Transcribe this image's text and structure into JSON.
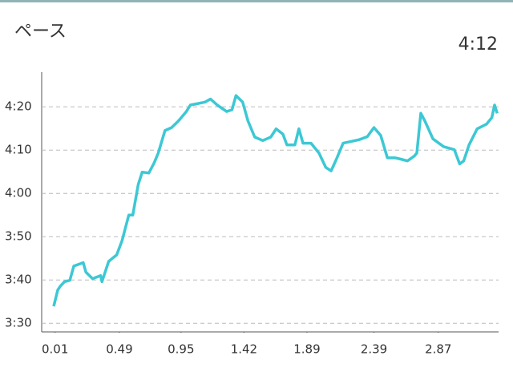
{
  "chart_data": {
    "type": "line",
    "title": "ペース",
    "current_pace": "4:12",
    "x": [
      0.0,
      0.03,
      0.05,
      0.08,
      0.12,
      0.15,
      0.22,
      0.24,
      0.29,
      0.35,
      0.36,
      0.41,
      0.47,
      0.51,
      0.56,
      0.59,
      0.63,
      0.66,
      0.71,
      0.75,
      0.78,
      0.83,
      0.88,
      0.93,
      0.99,
      1.02,
      1.07,
      1.13,
      1.17,
      1.22,
      1.29,
      1.33,
      1.36,
      1.41,
      1.45,
      1.5,
      1.56,
      1.62,
      1.66,
      1.71,
      1.74,
      1.8,
      1.83,
      1.86,
      1.92,
      1.98,
      2.03,
      2.07,
      2.11,
      2.16,
      2.22,
      2.28,
      2.34,
      2.39,
      2.44,
      2.49,
      2.55,
      2.59,
      2.64,
      2.69,
      2.71,
      2.74,
      2.77,
      2.83,
      2.91,
      2.99,
      3.03,
      3.06,
      3.1,
      3.16,
      3.23,
      3.27,
      3.29,
      3.31
    ],
    "values": [
      213.9,
      217.7,
      218.6,
      219.6,
      219.9,
      223.2,
      224.0,
      221.8,
      220.3,
      221.0,
      219.6,
      224.3,
      225.8,
      229.1,
      235.0,
      235.0,
      242.0,
      244.9,
      244.7,
      247.1,
      249.3,
      254.5,
      255.2,
      256.7,
      258.9,
      260.4,
      260.7,
      261.1,
      261.8,
      260.4,
      258.9,
      259.3,
      262.6,
      261.1,
      256.7,
      253.0,
      252.2,
      253.0,
      254.9,
      253.7,
      251.2,
      251.2,
      254.9,
      251.6,
      251.6,
      249.3,
      246.0,
      245.2,
      247.9,
      251.6,
      252.0,
      252.4,
      253.1,
      255.2,
      253.4,
      248.2,
      248.2,
      247.9,
      247.5,
      248.6,
      249.3,
      258.5,
      256.7,
      252.6,
      250.8,
      250.1,
      246.8,
      247.5,
      251.2,
      254.9,
      256.0,
      257.5,
      260.4,
      258.5
    ],
    "color": "#3cc8d4",
    "xlim": [
      -0.09,
      3.32
    ],
    "xticks": [
      0.01,
      0.49,
      0.95,
      1.42,
      1.89,
      2.39,
      2.87
    ],
    "ylim": [
      208,
      268
    ],
    "yticks": [
      {
        "value": 210,
        "label": "3:30"
      },
      {
        "value": 220,
        "label": "3:40"
      },
      {
        "value": 230,
        "label": "3:50"
      },
      {
        "value": 240,
        "label": "4:00"
      },
      {
        "value": 250,
        "label": "4:10"
      },
      {
        "value": 260,
        "label": "4:20"
      }
    ],
    "grid": true
  }
}
